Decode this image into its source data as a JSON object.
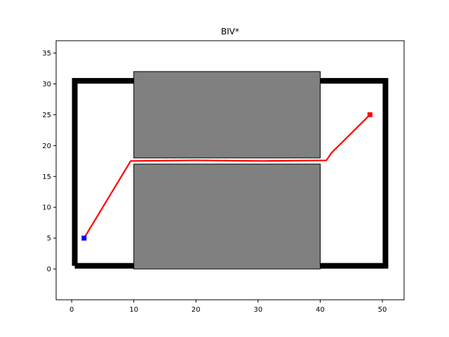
{
  "chart_data": {
    "type": "line",
    "title": "BIV*",
    "xlabel": "",
    "ylabel": "",
    "xlim": [
      -2.5,
      53.5
    ],
    "ylim": [
      -5,
      37
    ],
    "xticks": [
      0,
      10,
      20,
      30,
      40,
      50
    ],
    "yticks": [
      0,
      5,
      10,
      15,
      20,
      25,
      30,
      35
    ],
    "grid": false,
    "boundary": {
      "color": "#000000",
      "points": [
        [
          0.5,
          0.5
        ],
        [
          50.5,
          0.5
        ],
        [
          50.5,
          30.5
        ],
        [
          0.5,
          30.5
        ],
        [
          0.5,
          0.5
        ]
      ]
    },
    "obstacles": [
      {
        "x": [
          10,
          40
        ],
        "y": [
          18,
          32
        ],
        "color": "#808080"
      },
      {
        "x": [
          10,
          40
        ],
        "y": [
          0,
          17
        ],
        "color": "#808080"
      }
    ],
    "path": {
      "color": "#ff0000",
      "x": [
        2,
        9.5,
        20,
        31,
        41,
        41.8,
        48
      ],
      "y": [
        5,
        17.5,
        17.6,
        17.5,
        17.6,
        18.8,
        25
      ]
    },
    "start": {
      "x": 2,
      "y": 5,
      "color": "#0000ff"
    },
    "goal": {
      "x": 48,
      "y": 25,
      "color": "#ff0000"
    }
  }
}
